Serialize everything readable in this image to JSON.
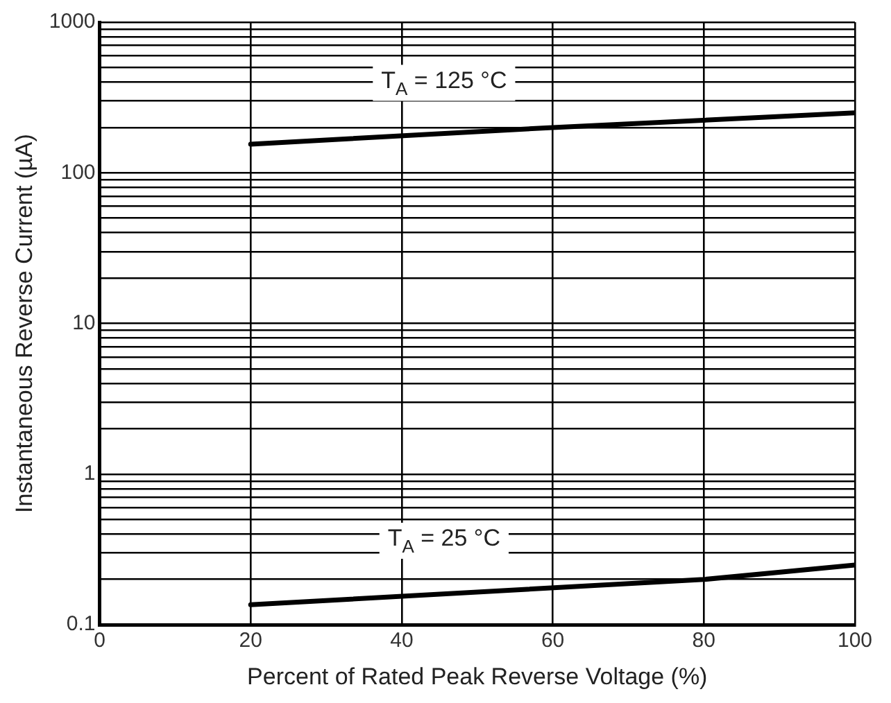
{
  "chart_data": {
    "type": "line",
    "xlabel": "Percent of Rated Peak Reverse Voltage (%)",
    "ylabel": "Instantaneous Reverse Current (µA)",
    "series": [
      {
        "color": "#000000",
        "x": [
          20,
          60,
          100
        ],
        "values": [
          155,
          200,
          250
        ]
      },
      {
        "color": "#000000",
        "x": [
          20,
          80,
          100
        ],
        "values": [
          0.136,
          0.2,
          0.249
        ]
      }
    ],
    "xlim": [
      0,
      100
    ],
    "xticks": [
      0,
      20,
      40,
      60,
      80,
      100
    ],
    "ylim": [
      0.1,
      1000
    ],
    "log": "y",
    "yticks": [
      0.1,
      {
        "value": 0.2,
        "label": null
      },
      {
        "value": 0.3,
        "label": null
      },
      {
        "value": 0.4,
        "label": null
      },
      {
        "value": 0.5,
        "label": null
      },
      {
        "value": 0.6,
        "label": null
      },
      {
        "value": 0.7,
        "label": null
      },
      {
        "value": 0.8,
        "label": null
      },
      {
        "value": 0.9,
        "label": null
      },
      1,
      {
        "value": 2,
        "label": null
      },
      {
        "value": 3,
        "label": null
      },
      {
        "value": 4,
        "label": null
      },
      {
        "value": 5,
        "label": null
      },
      {
        "value": 6,
        "label": null
      },
      {
        "value": 7,
        "label": null
      },
      {
        "value": 8,
        "label": null
      },
      {
        "value": 9,
        "label": null
      },
      10,
      {
        "value": 20,
        "label": null
      },
      {
        "value": 30,
        "label": null
      },
      {
        "value": 40,
        "label": null
      },
      {
        "value": 50,
        "label": null
      },
      {
        "value": 60,
        "label": null
      },
      {
        "value": 70,
        "label": null
      },
      {
        "value": 80,
        "label": null
      },
      {
        "value": 90,
        "label": null
      },
      100,
      {
        "value": 200,
        "label": null
      },
      {
        "value": 300,
        "label": null
      },
      {
        "value": 400,
        "label": null
      },
      {
        "value": 500,
        "label": null
      },
      {
        "value": 600,
        "label": null
      },
      {
        "value": 700,
        "label": null
      },
      {
        "value": 800,
        "label": null
      },
      {
        "value": 900,
        "label": null
      },
      1000
    ],
    "grid": true,
    "marker": "none",
    "line_style": "solid",
    "annotations": [
      "T$_{A}$ = 125 °C",
      "T$_{A}$ = 25 °C"
    ]
  }
}
